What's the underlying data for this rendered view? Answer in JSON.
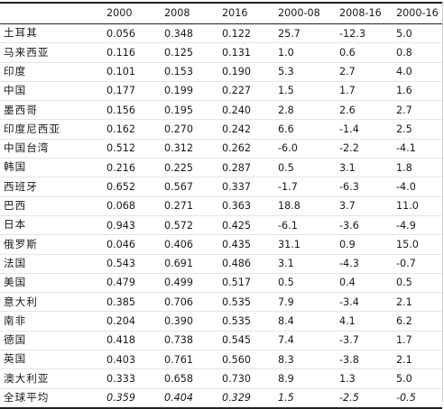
{
  "table": {
    "headers": [
      "",
      "2000",
      "2008",
      "2016",
      "2000-08",
      "2008-16",
      "2000-16"
    ],
    "rows": [
      {
        "name": "土耳其",
        "values": [
          "0.056",
          "0.348",
          "0.122",
          "25.7",
          "-12.3",
          "5.0"
        ]
      },
      {
        "name": "马来西亚",
        "values": [
          "0.116",
          "0.125",
          "0.131",
          "1.0",
          "0.6",
          "0.8"
        ]
      },
      {
        "name": "印度",
        "values": [
          "0.101",
          "0.153",
          "0.190",
          "5.3",
          "2.7",
          "4.0"
        ]
      },
      {
        "name": "中国",
        "values": [
          "0.177",
          "0.199",
          "0.227",
          "1.5",
          "1.7",
          "1.6"
        ]
      },
      {
        "name": "墨西哥",
        "values": [
          "0.156",
          "0.195",
          "0.240",
          "2.8",
          "2.6",
          "2.7"
        ]
      },
      {
        "name": "印度尼西亚",
        "values": [
          "0.162",
          "0.270",
          "0.242",
          "6.6",
          "-1.4",
          "2.5"
        ]
      },
      {
        "name": "中国台湾",
        "values": [
          "0.512",
          "0.312",
          "0.262",
          "-6.0",
          "-2.2",
          "-4.1"
        ]
      },
      {
        "name": "韩国",
        "values": [
          "0.216",
          "0.225",
          "0.287",
          "0.5",
          "3.1",
          "1.8"
        ]
      },
      {
        "name": "西班牙",
        "values": [
          "0.652",
          "0.567",
          "0.337",
          "-1.7",
          "-6.3",
          "-4.0"
        ]
      },
      {
        "name": "巴西",
        "values": [
          "0.068",
          "0.271",
          "0.363",
          "18.8",
          "3.7",
          "11.0"
        ]
      },
      {
        "name": "日本",
        "values": [
          "0.943",
          "0.572",
          "0.425",
          "-6.1",
          "-3.6",
          "-4.9"
        ]
      },
      {
        "name": "俄罗斯",
        "values": [
          "0.046",
          "0.406",
          "0.435",
          "31.1",
          "0.9",
          "15.0"
        ]
      },
      {
        "name": "法国",
        "values": [
          "0.543",
          "0.691",
          "0.486",
          "3.1",
          "-4.3",
          "-0.7"
        ]
      },
      {
        "name": "美国",
        "values": [
          "0.479",
          "0.499",
          "0.517",
          "0.5",
          "0.4",
          "0.5"
        ]
      },
      {
        "name": "意大利",
        "values": [
          "0.385",
          "0.706",
          "0.535",
          "7.9",
          "-3.4",
          "2.1"
        ]
      },
      {
        "name": "南非",
        "values": [
          "0.204",
          "0.390",
          "0.535",
          "8.4",
          "4.1",
          "6.2"
        ]
      },
      {
        "name": "德国",
        "values": [
          "0.418",
          "0.738",
          "0.545",
          "7.4",
          "-3.7",
          "1.7"
        ]
      },
      {
        "name": "英国",
        "values": [
          "0.403",
          "0.761",
          "0.560",
          "8.3",
          "-3.8",
          "2.1"
        ]
      },
      {
        "name": "澳大利亚",
        "values": [
          "0.333",
          "0.658",
          "0.730",
          "8.9",
          "1.3",
          "5.0"
        ]
      },
      {
        "name": "全球平均",
        "values": [
          "0.359",
          "0.404",
          "0.329",
          "1.5",
          "-2.5",
          "-0.5"
        ]
      }
    ]
  }
}
